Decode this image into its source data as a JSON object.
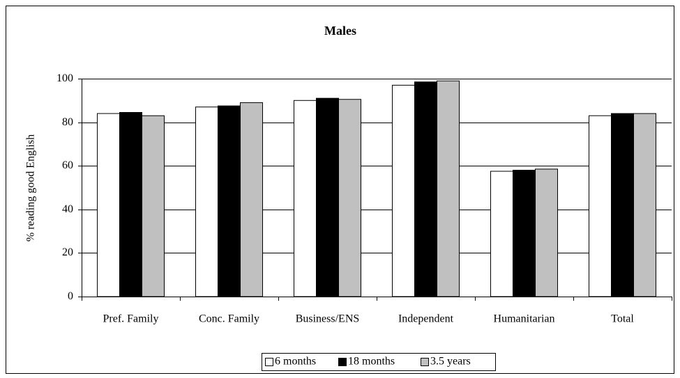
{
  "chart_data": {
    "type": "bar",
    "title": "Males",
    "y_label": "% reading good English",
    "categories": [
      "Pref. Family",
      "Conc. Family",
      "Business/ENS",
      "Independent",
      "Humanitarian",
      "Total"
    ],
    "series": [
      {
        "name": "6 months",
        "color": "#ffffff",
        "values": [
          84,
          87,
          90,
          97,
          57.5,
          83
        ]
      },
      {
        "name": "18 months",
        "color": "#000000",
        "values": [
          84.5,
          87.5,
          91,
          98.5,
          58,
          84
        ]
      },
      {
        "name": "3.5 years",
        "color": "#c0c0c0",
        "values": [
          83,
          89,
          90.5,
          99,
          58.5,
          84
        ]
      }
    ],
    "ylim": [
      0,
      100
    ],
    "yticks": [
      0,
      20,
      40,
      60,
      80,
      100
    ],
    "grid": true
  }
}
